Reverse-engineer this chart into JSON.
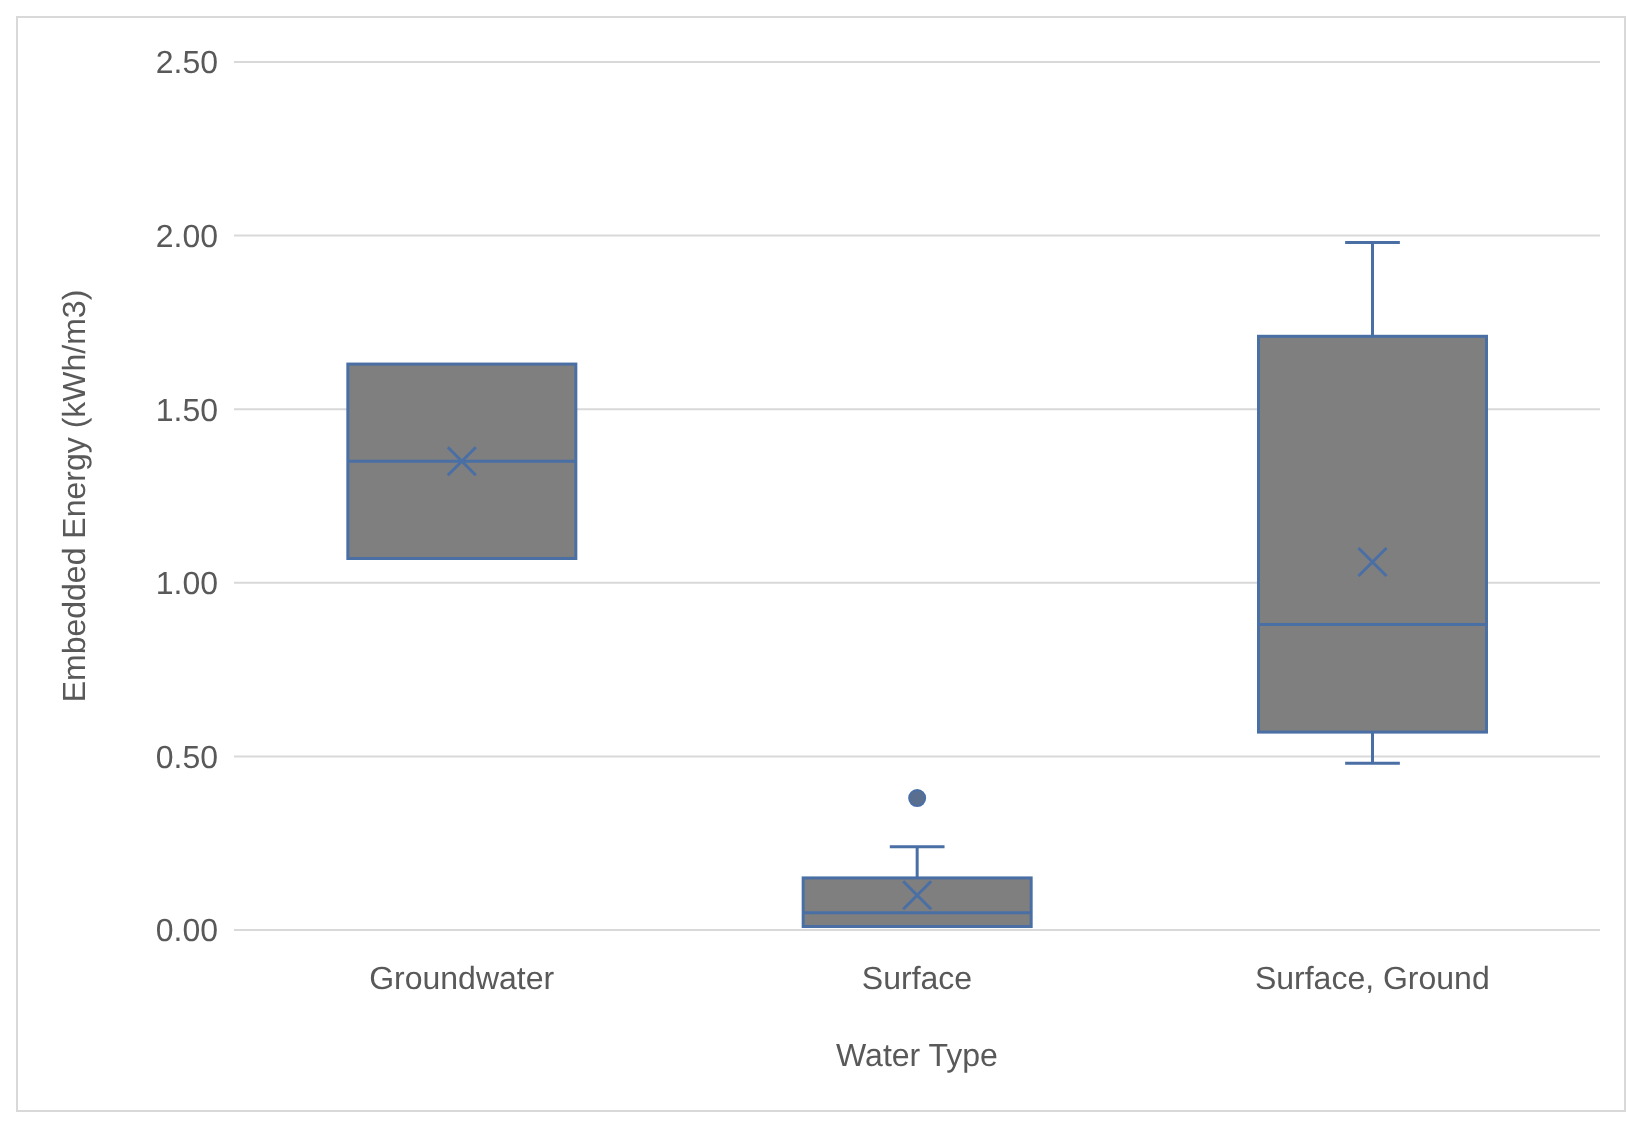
{
  "chart_data": {
    "type": "box",
    "xlabel": "Water Type",
    "ylabel": "Embedded Energy (kWh/m3)",
    "categories": [
      "Groundwater",
      "Surface",
      "Surface, Ground"
    ],
    "series": [
      {
        "color": "#7f7f7f",
        "boxes": [
          {
            "low": 1.07,
            "q1": 1.07,
            "median": 1.35,
            "q3": 1.63,
            "high": 1.63,
            "mean": 1.35
          },
          {
            "low": 0.01,
            "q1": 0.01,
            "median": 0.05,
            "q3": 0.15,
            "high": 0.24,
            "mean": 0.1,
            "outliers": [
              0.38
            ]
          },
          {
            "low": 0.48,
            "q1": 0.57,
            "median": 0.88,
            "q3": 1.71,
            "high": 1.98,
            "mean": 1.06
          }
        ]
      }
    ],
    "ylim": [
      0,
      2.5
    ],
    "yticks": [
      {
        "value": 0,
        "label": "0.00"
      },
      {
        "value": 0.5,
        "label": "0.50"
      },
      {
        "value": 1,
        "label": "1.00"
      },
      {
        "value": 1.5,
        "label": "1.50"
      },
      {
        "value": 2,
        "label": "2.00"
      },
      {
        "value": 2.5,
        "label": "2.50"
      }
    ],
    "grid": "y"
  }
}
